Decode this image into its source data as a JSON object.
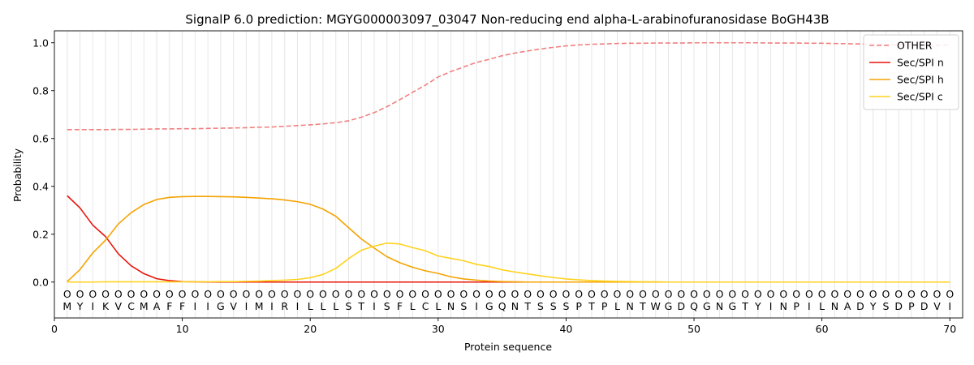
{
  "chart_data": {
    "type": "line",
    "title": "SignalP 6.0 prediction: MGYG000003097_03047 Non-reducing end alpha-L-arabinofuranosidase BoGH43B",
    "xlabel": "Protein sequence",
    "ylabel": "Probability",
    "xlim": [
      0,
      71
    ],
    "ylim": [
      -0.15,
      1.05
    ],
    "xticks": [
      0,
      10,
      20,
      30,
      40,
      50,
      60,
      70
    ],
    "yticks": [
      0.0,
      0.2,
      0.4,
      0.6,
      0.8,
      1.0
    ],
    "xtick_labels": [
      "0",
      "10",
      "20",
      "30",
      "40",
      "50",
      "60",
      "70"
    ],
    "ytick_labels": [
      "0.0",
      "0.2",
      "0.4",
      "0.6",
      "0.8",
      "1.0"
    ],
    "legend_position": "top-right",
    "vertical_grid": true,
    "sequence": [
      "M",
      "Y",
      "I",
      "K",
      "V",
      "C",
      "M",
      "A",
      "F",
      "F",
      "I",
      "I",
      "G",
      "V",
      "I",
      "M",
      "I",
      "R",
      "I",
      "L",
      "L",
      "L",
      "S",
      "T",
      "I",
      "S",
      "F",
      "L",
      "C",
      "L",
      "N",
      "S",
      "I",
      "G",
      "Q",
      "N",
      "T",
      "S",
      "S",
      "S",
      "P",
      "T",
      "P",
      "L",
      "N",
      "T",
      "W",
      "G",
      "D",
      "Q",
      "G",
      "N",
      "G",
      "T",
      "Y",
      "I",
      "N",
      "P",
      "I",
      "L",
      "N",
      "A",
      "D",
      "Y",
      "S",
      "D",
      "P",
      "D",
      "V",
      "I"
    ],
    "annotation_marker": "O",
    "series": [
      {
        "name": "OTHER",
        "color": "#f08080",
        "dashed": true,
        "values": [
          0.637,
          0.637,
          0.637,
          0.637,
          0.638,
          0.638,
          0.639,
          0.64,
          0.64,
          0.641,
          0.641,
          0.642,
          0.643,
          0.644,
          0.645,
          0.647,
          0.648,
          0.651,
          0.654,
          0.657,
          0.661,
          0.666,
          0.674,
          0.689,
          0.708,
          0.733,
          0.762,
          0.793,
          0.823,
          0.857,
          0.88,
          0.899,
          0.918,
          0.931,
          0.946,
          0.957,
          0.966,
          0.974,
          0.981,
          0.987,
          0.991,
          0.994,
          0.995,
          0.997,
          0.998,
          0.998,
          0.999,
          0.999,
          0.999,
          1.0,
          1.0,
          1.0,
          1.0,
          1.0,
          1.0,
          0.999,
          0.999,
          0.999,
          0.998,
          0.998,
          0.997,
          0.996,
          0.995,
          0.994,
          0.993,
          0.992,
          0.991,
          0.99,
          0.99,
          0.99
        ]
      },
      {
        "name": "Sec/SPI n",
        "color": "#e8140a",
        "dashed": false,
        "values": [
          0.361,
          0.31,
          0.238,
          0.19,
          0.118,
          0.068,
          0.035,
          0.014,
          0.006,
          0.002,
          0.001,
          0.0,
          0.0,
          0.0,
          0.0,
          0.0,
          0.0,
          0.0,
          0.0,
          0.0,
          0.0,
          0.0,
          0.0,
          0.0,
          0.0,
          0.0,
          0.0,
          0.0,
          0.0,
          0.0,
          0.0,
          0.0,
          0.0,
          0.0,
          0.0,
          0.0,
          0.0,
          0.0,
          0.0,
          0.0,
          0.0,
          0.0,
          0.0,
          0.0,
          0.0,
          0.0,
          0.0,
          0.0,
          0.0,
          0.0,
          0.0,
          0.0,
          0.0,
          0.0,
          0.0,
          0.0,
          0.0,
          0.0,
          0.0,
          0.0,
          0.0,
          0.0,
          0.0,
          0.0,
          0.0,
          0.0,
          0.0,
          0.0,
          0.0,
          0.0
        ]
      },
      {
        "name": "Sec/SPI h",
        "color": "#f5a300",
        "dashed": false,
        "values": [
          0.002,
          0.052,
          0.122,
          0.175,
          0.243,
          0.29,
          0.324,
          0.345,
          0.354,
          0.357,
          0.358,
          0.358,
          0.357,
          0.356,
          0.354,
          0.351,
          0.348,
          0.343,
          0.336,
          0.325,
          0.305,
          0.275,
          0.227,
          0.18,
          0.142,
          0.106,
          0.081,
          0.062,
          0.047,
          0.036,
          0.022,
          0.013,
          0.008,
          0.004,
          0.002,
          0.001,
          0.0,
          0.0,
          0.0,
          0.0,
          0.0,
          0.0,
          0.0,
          0.0,
          0.0,
          0.0,
          0.0,
          0.0,
          0.0,
          0.0,
          0.0,
          0.0,
          0.0,
          0.0,
          0.0,
          0.0,
          0.0,
          0.0,
          0.0,
          0.0,
          0.0,
          0.0,
          0.0,
          0.0,
          0.0,
          0.0,
          0.0,
          0.0,
          0.0,
          0.0
        ]
      },
      {
        "name": "Sec/SPI c",
        "color": "#ffd21e",
        "dashed": false,
        "values": [
          0.0,
          0.0,
          0.0,
          0.001,
          0.001,
          0.001,
          0.001,
          0.001,
          0.001,
          0.001,
          0.001,
          0.001,
          0.002,
          0.002,
          0.003,
          0.004,
          0.006,
          0.008,
          0.011,
          0.018,
          0.032,
          0.057,
          0.098,
          0.133,
          0.15,
          0.163,
          0.159,
          0.144,
          0.131,
          0.109,
          0.099,
          0.089,
          0.074,
          0.065,
          0.051,
          0.042,
          0.034,
          0.026,
          0.019,
          0.013,
          0.009,
          0.006,
          0.004,
          0.003,
          0.002,
          0.001,
          0.001,
          0.0,
          0.0,
          0.0,
          0.0,
          0.0,
          0.0,
          0.0,
          0.0,
          0.0,
          0.0,
          0.0,
          0.0,
          0.0,
          0.0,
          0.0,
          0.0,
          0.0,
          0.0,
          0.0,
          0.0,
          0.0,
          0.0,
          0.0
        ]
      }
    ]
  }
}
